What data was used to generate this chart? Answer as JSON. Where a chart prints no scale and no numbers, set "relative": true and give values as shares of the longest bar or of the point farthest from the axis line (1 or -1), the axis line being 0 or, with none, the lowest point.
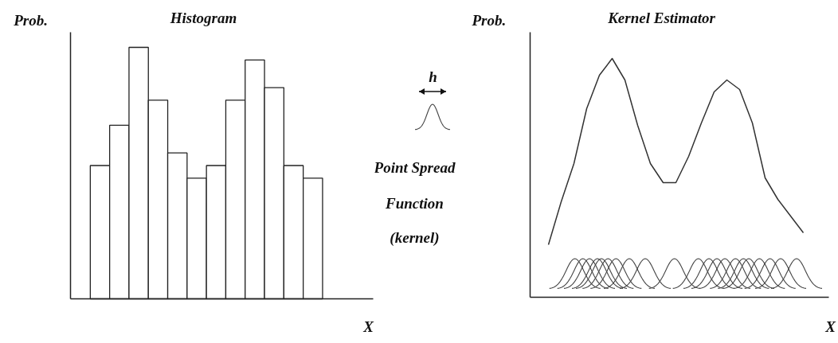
{
  "chart_data": [
    {
      "type": "bar",
      "title": "Histogram",
      "xlabel": "X",
      "ylabel": "Prob.",
      "relative": true,
      "color": "#ffffff",
      "categories": [
        null,
        null,
        null,
        null,
        null,
        null,
        null,
        null,
        null,
        null,
        null,
        null
      ],
      "values": [
        0.53,
        0.69,
        1,
        0.79,
        0.58,
        0.48,
        0.53,
        0.79,
        0.95,
        0.84,
        0.53,
        0.48
      ]
    },
    {
      "type": "other",
      "annotations": [
        "h",
        "Point Spread",
        "Function",
        "(kernel)"
      ]
    },
    {
      "type": "line",
      "title": "Kernel Estimator",
      "xlabel": "X",
      "ylabel": "Prob.",
      "relative": true,
      "color": "#333333",
      "categories": [
        null,
        null,
        null,
        null,
        null,
        null,
        null,
        null,
        null,
        null,
        null,
        null,
        null,
        null,
        null,
        null,
        null,
        null,
        null,
        null,
        null
      ],
      "values": [
        0.22,
        0.4,
        0.56,
        0.79,
        0.93,
        1,
        0.91,
        0.72,
        0.56,
        0.48,
        0.48,
        0.59,
        0.73,
        0.86,
        0.91,
        0.87,
        0.73,
        0.5,
        0.41,
        0.34,
        0.27
      ]
    }
  ]
}
